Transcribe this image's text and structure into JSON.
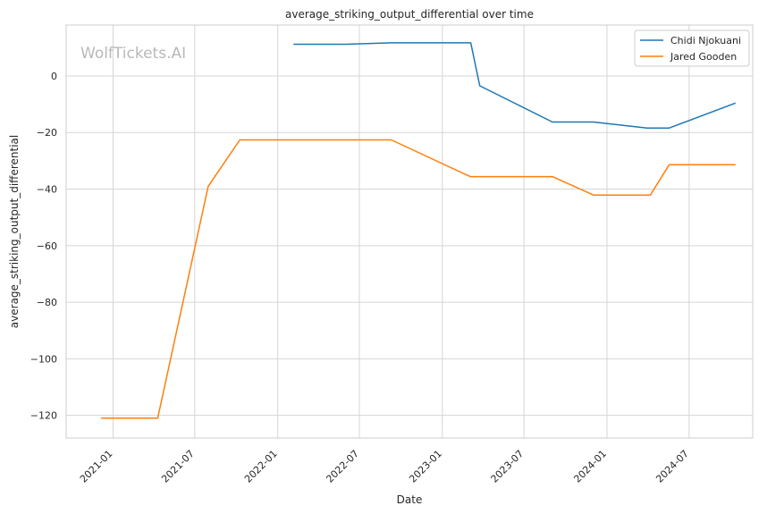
{
  "chart_data": {
    "type": "line",
    "title": "average_striking_output_differential over time",
    "xlabel": "Date",
    "ylabel": "average_striking_output_differential",
    "watermark": "WolfTickets.AI",
    "xlim": [
      "2020-09-19",
      "2024-11-19"
    ],
    "ylim": [
      -128,
      18
    ],
    "x_ticks": [
      "2021-01",
      "2021-07",
      "2022-01",
      "2022-07",
      "2023-01",
      "2023-07",
      "2024-01",
      "2024-07"
    ],
    "x_tick_dates": [
      "2021-01-01",
      "2021-07-01",
      "2022-01-01",
      "2022-07-01",
      "2023-01-01",
      "2023-07-01",
      "2024-01-01",
      "2024-07-01"
    ],
    "y_ticks": [
      0,
      -20,
      -40,
      -60,
      -80,
      -100,
      -120
    ],
    "y_tick_labels": [
      "0",
      "−20",
      "−40",
      "−60",
      "−80",
      "−100",
      "−120"
    ],
    "grid": true,
    "legend_position": "top-right",
    "series": [
      {
        "name": "Chidi Njokuani",
        "color": "#1f77b4",
        "points": [
          [
            "2022-02-05",
            11.2
          ],
          [
            "2022-06-01",
            11.2
          ],
          [
            "2022-09-10",
            11.7
          ],
          [
            "2023-03-05",
            11.7
          ],
          [
            "2023-03-25",
            -3.5
          ],
          [
            "2023-09-02",
            -16.3
          ],
          [
            "2023-12-02",
            -16.3
          ],
          [
            "2024-03-30",
            -18.4
          ],
          [
            "2024-05-18",
            -18.4
          ],
          [
            "2024-10-12",
            -9.6
          ]
        ]
      },
      {
        "name": "Jared Gooden",
        "color": "#ff7f0e",
        "points": [
          [
            "2020-12-05",
            -121.0
          ],
          [
            "2021-04-10",
            -121.0
          ],
          [
            "2021-07-31",
            -39.0
          ],
          [
            "2021-10-09",
            -22.6
          ],
          [
            "2022-09-10",
            -22.6
          ],
          [
            "2023-03-04",
            -35.6
          ],
          [
            "2023-09-02",
            -35.6
          ],
          [
            "2023-12-02",
            -42.1
          ],
          [
            "2024-04-06",
            -42.1
          ],
          [
            "2024-05-18",
            -31.4
          ],
          [
            "2024-10-12",
            -31.4
          ]
        ]
      }
    ]
  }
}
